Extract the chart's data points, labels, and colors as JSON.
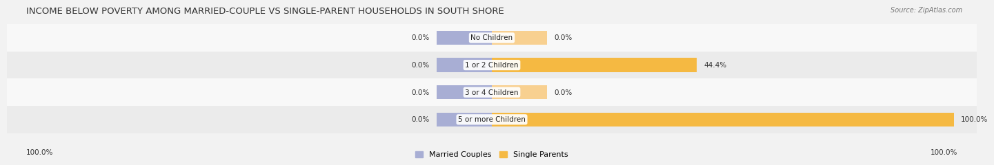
{
  "title": "INCOME BELOW POVERTY AMONG MARRIED-COUPLE VS SINGLE-PARENT HOUSEHOLDS IN SOUTH SHORE",
  "source": "Source: ZipAtlas.com",
  "categories": [
    "No Children",
    "1 or 2 Children",
    "3 or 4 Children",
    "5 or more Children"
  ],
  "married_values": [
    0.0,
    0.0,
    0.0,
    0.0
  ],
  "single_values": [
    0.0,
    44.4,
    0.0,
    100.0
  ],
  "married_color": "#a8aed4",
  "single_color": "#f5b942",
  "single_color_light": "#f8d090",
  "bg_color": "#f2f2f2",
  "row_bg_light": "#f8f8f8",
  "row_bg_dark": "#ebebeb",
  "title_fontsize": 9.5,
  "label_fontsize": 7.5,
  "value_fontsize": 7.5,
  "source_fontsize": 7.0,
  "legend_fontsize": 8.0,
  "max_val": 100.0,
  "stub_val": 12.0,
  "bar_height": 0.52,
  "axis_label_left": "100.0%",
  "axis_label_right": "100.0%"
}
